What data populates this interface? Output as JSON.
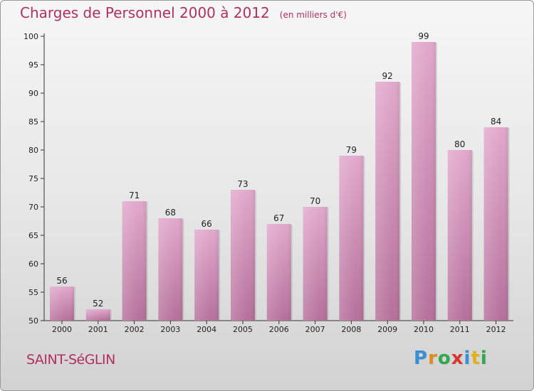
{
  "title": "Charges de Personnel 2000 à 2012",
  "subtitle": "(en milliers d'€)",
  "city": "SAINT-SéGLIN",
  "logo": {
    "letters": [
      {
        "ch": "P",
        "color": "#3a8fd4"
      },
      {
        "ch": "r",
        "color": "#e08a1e"
      },
      {
        "ch": "o",
        "color": "#2fa84f"
      },
      {
        "ch": "x",
        "color": "#d7352e"
      },
      {
        "ch": "i",
        "color": "#3a8fd4"
      },
      {
        "ch": "t",
        "color": "#e0b21e"
      },
      {
        "ch": "i",
        "color": "#2fa84f"
      }
    ]
  },
  "colors": {
    "bar_top": "#e2a8cc",
    "bar_bottom": "#b5709a",
    "accent": "#b03060"
  },
  "chart_data": {
    "type": "bar",
    "categories": [
      "2000",
      "2001",
      "2002",
      "2003",
      "2004",
      "2005",
      "2006",
      "2007",
      "2008",
      "2009",
      "2010",
      "2011",
      "2012"
    ],
    "values": [
      56,
      52,
      71,
      68,
      66,
      73,
      67,
      70,
      79,
      92,
      99,
      80,
      84
    ],
    "ylim": [
      50,
      100
    ],
    "yticks": [
      50,
      55,
      60,
      65,
      70,
      75,
      80,
      85,
      90,
      95,
      100
    ],
    "grid": false,
    "xlabel": "",
    "ylabel": ""
  }
}
